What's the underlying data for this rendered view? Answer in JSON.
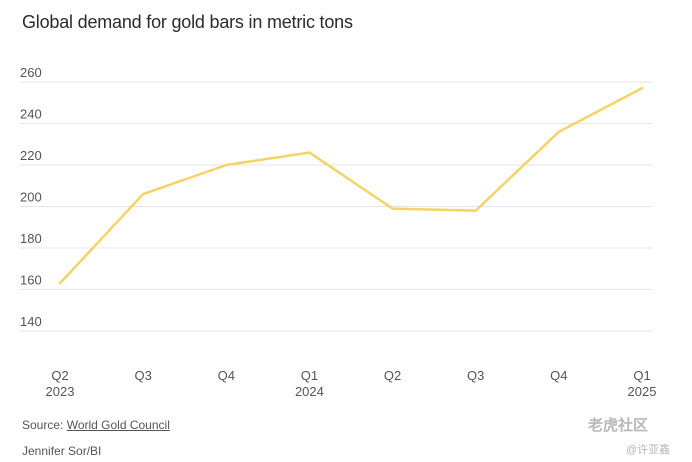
{
  "title": "Global demand for gold bars in metric tons",
  "source_prefix": "Source: ",
  "source_link": "World Gold Council",
  "credit": "Jennifer Sor/BI",
  "watermark": "老虎社区",
  "watermark_sub": "@许亚鑫",
  "colors": {
    "line": "#f5d366",
    "grid": "#e6e6e6",
    "text": "#555555"
  },
  "chart_data": {
    "type": "line",
    "title": "Global demand for gold bars in metric tons",
    "categories": [
      "Q2 2023",
      "Q3",
      "Q4",
      "Q1 2024",
      "Q2",
      "Q3",
      "Q4",
      "Q1 2025"
    ],
    "x_tick_labels": [
      [
        "Q2",
        "2023"
      ],
      [
        "Q3",
        ""
      ],
      [
        "Q4",
        ""
      ],
      [
        "Q1",
        "2024"
      ],
      [
        "Q2",
        ""
      ],
      [
        "Q3",
        ""
      ],
      [
        "Q4",
        ""
      ],
      [
        "Q1",
        "2025"
      ]
    ],
    "series": [
      {
        "values": [
          163,
          206,
          220,
          226,
          199,
          198,
          236,
          257
        ]
      }
    ],
    "y_ticks": [
      140,
      160,
      180,
      200,
      220,
      240,
      260
    ],
    "ylim": [
      130,
      265
    ],
    "grid": true,
    "xlabel": "",
    "ylabel": ""
  }
}
